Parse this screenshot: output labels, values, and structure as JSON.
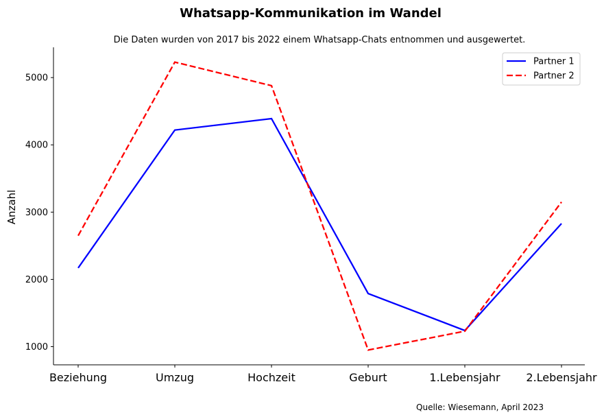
{
  "chart_data": {
    "type": "line",
    "title": "Whatsapp-Kommunikation im Wandel",
    "subtitle": "Die Daten wurden von 2017 bis 2022 einem Whatsapp-Chats entnommen und ausgewertet.",
    "xlabel": "",
    "ylabel": "Anzahl",
    "source": "Quelle: Wiesemann, April 2023",
    "categories": [
      "Beziehung",
      "Umzug",
      "Hochzeit",
      "Geburt",
      "1.Lebensjahr",
      "2.Lebensjahr"
    ],
    "yticks": [
      1000,
      2000,
      3000,
      4000,
      5000
    ],
    "ylim": [
      730,
      5450
    ],
    "grid": false,
    "legend_position": "top-right",
    "series": [
      {
        "name": "Partner 1",
        "values": [
          2170,
          4220,
          4390,
          1790,
          1240,
          2830
        ],
        "color": "#0000ff",
        "style": "solid"
      },
      {
        "name": "Partner 2",
        "values": [
          2650,
          5230,
          4880,
          950,
          1230,
          3150
        ],
        "color": "#ff0000",
        "style": "dashed"
      }
    ]
  }
}
